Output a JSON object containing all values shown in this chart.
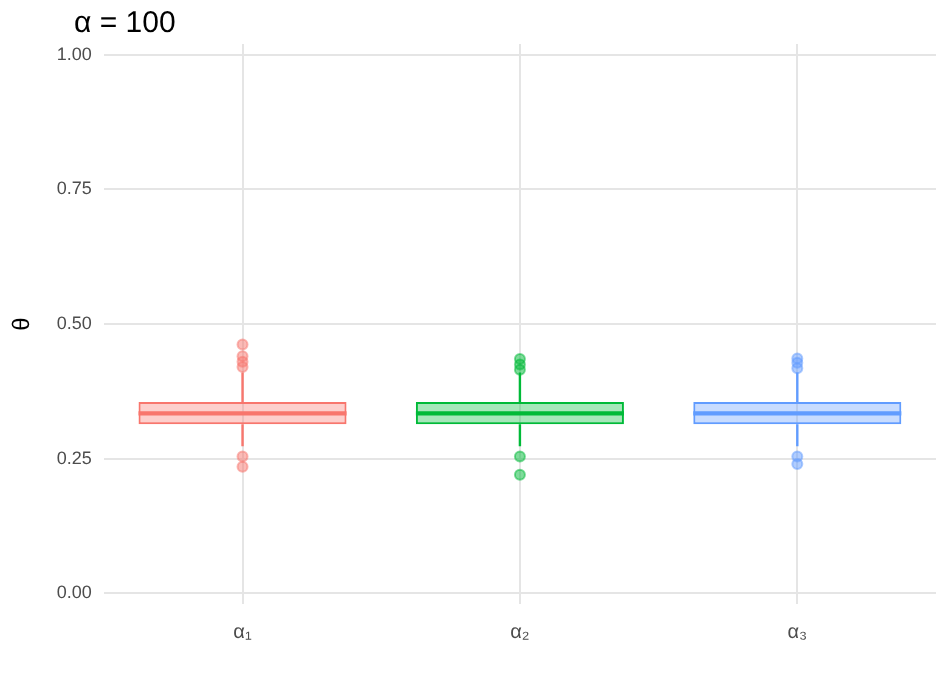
{
  "chart_data": {
    "type": "box",
    "title": "α = 100",
    "ylabel": "θ",
    "categories": [
      "α₁",
      "α₂",
      "α₃"
    ],
    "colors": [
      "#f8766d",
      "#00ba38",
      "#619cff"
    ],
    "boxes": [
      {
        "low": 0.273,
        "q1": 0.314,
        "median": 0.334,
        "q3": 0.355,
        "high": 0.41,
        "outliers": [
          0.42,
          0.43,
          0.44,
          0.462,
          0.254,
          0.235
        ]
      },
      {
        "low": 0.273,
        "q1": 0.314,
        "median": 0.334,
        "q3": 0.355,
        "high": 0.41,
        "outliers": [
          0.415,
          0.425,
          0.435,
          0.254,
          0.22
        ]
      },
      {
        "low": 0.273,
        "q1": 0.314,
        "median": 0.334,
        "q3": 0.355,
        "high": 0.41,
        "outliers": [
          0.418,
          0.428,
          0.436,
          0.254,
          0.24
        ]
      }
    ],
    "ylim": [
      -0.02,
      1.02
    ],
    "yticks": [
      {
        "value": 0,
        "label": "0.00"
      },
      {
        "value": 0.25,
        "label": "0.25"
      },
      {
        "value": 0.5,
        "label": "0.50"
      },
      {
        "value": 0.75,
        "label": "0.75"
      },
      {
        "value": 1,
        "label": "1.00"
      }
    ],
    "grid": true,
    "legend": false
  }
}
